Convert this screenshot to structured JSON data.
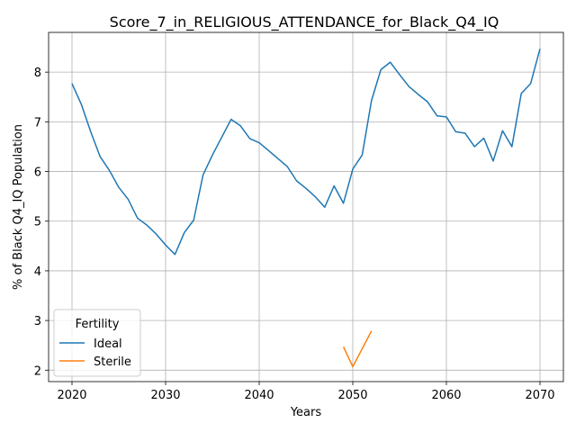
{
  "chart_data": {
    "type": "line",
    "title": "Score_7_in_RELIGIOUS_ATTENDANCE_for_Black_Q4_IQ",
    "xlabel": "Years",
    "ylabel": "% of Black Q4_IQ Population",
    "xlim": [
      2017.5,
      2072.5
    ],
    "ylim": [
      1.77,
      8.8
    ],
    "xticks": [
      2020,
      2030,
      2040,
      2050,
      2060,
      2070
    ],
    "yticks": [
      2,
      3,
      4,
      5,
      6,
      7,
      8
    ],
    "grid": true,
    "legend": {
      "title": "Fertility",
      "placement": "lower-left"
    },
    "series": [
      {
        "name": "Ideal",
        "color": "#1f77b4",
        "x": [
          2020,
          2021,
          2022,
          2023,
          2024,
          2025,
          2026,
          2027,
          2028,
          2029,
          2030,
          2031,
          2032,
          2033,
          2034,
          2035,
          2036,
          2037,
          2038,
          2039,
          2040,
          2041,
          2042,
          2043,
          2044,
          2045,
          2046,
          2047,
          2048,
          2049,
          2050,
          2051,
          2052,
          2053,
          2054,
          2055,
          2056,
          2057,
          2058,
          2059,
          2060,
          2061,
          2062,
          2063,
          2064,
          2065,
          2066,
          2067,
          2068,
          2069,
          2070
        ],
        "y": [
          7.77,
          7.35,
          6.8,
          6.3,
          6.02,
          5.68,
          5.44,
          5.06,
          4.92,
          4.74,
          4.52,
          4.33,
          4.77,
          5.02,
          5.93,
          6.33,
          6.69,
          7.05,
          6.92,
          6.66,
          6.58,
          6.42,
          6.26,
          6.1,
          5.81,
          5.66,
          5.49,
          5.28,
          5.71,
          5.36,
          6.05,
          6.33,
          7.43,
          8.05,
          8.2,
          7.95,
          7.71,
          7.55,
          7.4,
          7.12,
          7.1,
          6.8,
          6.77,
          6.5,
          6.67,
          6.21,
          6.82,
          6.5,
          7.57,
          7.77,
          8.47
        ]
      },
      {
        "name": "Sterile",
        "color": "#ff7f0e",
        "x": [
          2049,
          2050,
          2052
        ],
        "y": [
          2.47,
          2.07,
          2.79
        ]
      }
    ]
  }
}
